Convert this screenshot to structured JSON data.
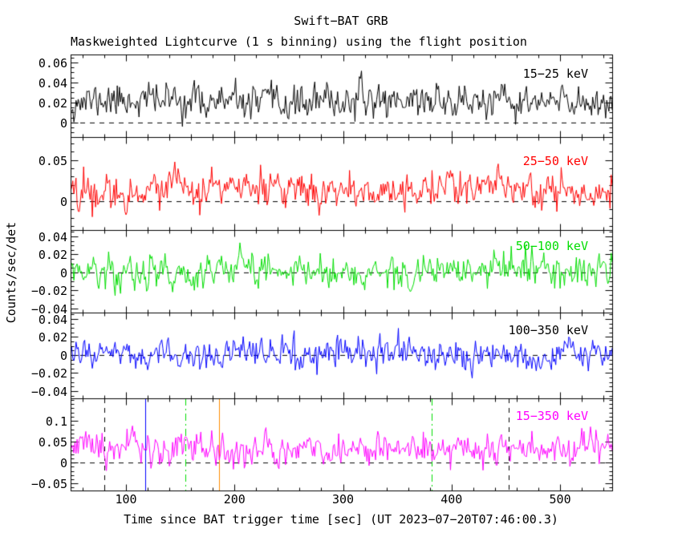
{
  "title": "Swift−BAT GRB",
  "subtitle": "Maskweighted Lightcurve (1 s binning) using the flight position",
  "x_axis": {
    "title": "Time since BAT trigger time [sec] (UT 2023−07−20T07:46:00.3)",
    "range": [
      49,
      548
    ],
    "major_ticks": [
      100,
      200,
      300,
      400,
      500
    ],
    "tick_labels": [
      "100",
      "200",
      "300",
      "400",
      "500"
    ],
    "minor_step": 20
  },
  "y_axis": {
    "title": "Counts/sec/det"
  },
  "chart_data": {
    "type": "line",
    "description": "Five stacked noise-dominated mask-weighted lightcurve panels (1 s binning) vs time since BAT trigger; no obvious burst, values are counts/sec/det scattered about a low baseline.",
    "panels": [
      {
        "label": "15−25 keV",
        "color": "#000000",
        "label_color": "#000000",
        "ylim": [
          -0.0145,
          0.068
        ],
        "yticks": [
          0,
          0.02,
          0.04,
          0.06
        ],
        "ytick_labels": [
          "0",
          "0.02",
          "0.04",
          "0.06"
        ],
        "minor_step": 0.005,
        "noise": {
          "baseline": 0.021,
          "sigma": 0.0085
        }
      },
      {
        "label": "25−50 keV",
        "color": "#ff0000",
        "label_color": "#ff0000",
        "ylim": [
          -0.035,
          0.078
        ],
        "yticks": [
          0,
          0.05
        ],
        "ytick_labels": [
          "0",
          "0.05"
        ],
        "minor_step": 0.01,
        "noise": {
          "baseline": 0.014,
          "sigma": 0.011
        }
      },
      {
        "label": "50−100 keV",
        "color": "#00dd00",
        "label_color": "#00dd00",
        "ylim": [
          -0.0445,
          0.047
        ],
        "yticks": [
          -0.04,
          -0.02,
          0,
          0.02,
          0.04
        ],
        "ytick_labels": [
          "−0.04",
          "−0.02",
          "0",
          "0.02",
          "0.04"
        ],
        "minor_step": 0.005,
        "noise": {
          "baseline": 0.001,
          "sigma": 0.0095
        }
      },
      {
        "label": "100−350 keV",
        "color": "#0000ff",
        "label_color": "#000000",
        "ylim": [
          -0.048,
          0.047
        ],
        "yticks": [
          -0.04,
          -0.02,
          0,
          0.02,
          0.04
        ],
        "ytick_labels": [
          "−0.04",
          "−0.02",
          "0",
          "0.02",
          "0.04"
        ],
        "minor_step": 0.005,
        "noise": {
          "baseline": 0.0,
          "sigma": 0.0085
        }
      },
      {
        "label": "15−350 keV",
        "color": "#ff00ff",
        "label_color": "#ff00ff",
        "ylim": [
          -0.067,
          0.154
        ],
        "yticks": [
          -0.05,
          0,
          0.05,
          0.1
        ],
        "ytick_labels": [
          "−0.05",
          "0",
          "0.05",
          "0.1"
        ],
        "minor_step": 0.01,
        "noise": {
          "baseline": 0.032,
          "sigma": 0.02
        }
      }
    ],
    "zero_line": {
      "value": 0,
      "style": "dashed",
      "color": "#000000"
    },
    "trigger_lines": [
      {
        "t": 80,
        "color": "#000000",
        "style": "dashed",
        "panel": 4
      },
      {
        "t": 118,
        "color": "#0000ff",
        "style": "solid",
        "panel": 4
      },
      {
        "t": 155,
        "color": "#00dd00",
        "style": "dashdot",
        "panel": 4
      },
      {
        "t": 186,
        "color": "#ff8c00",
        "style": "solid",
        "panel": 4
      },
      {
        "t": 382,
        "color": "#00dd00",
        "style": "dashdot",
        "panel": 4
      },
      {
        "t": 453,
        "color": "#000000",
        "style": "dashed",
        "panel": 4
      }
    ]
  }
}
